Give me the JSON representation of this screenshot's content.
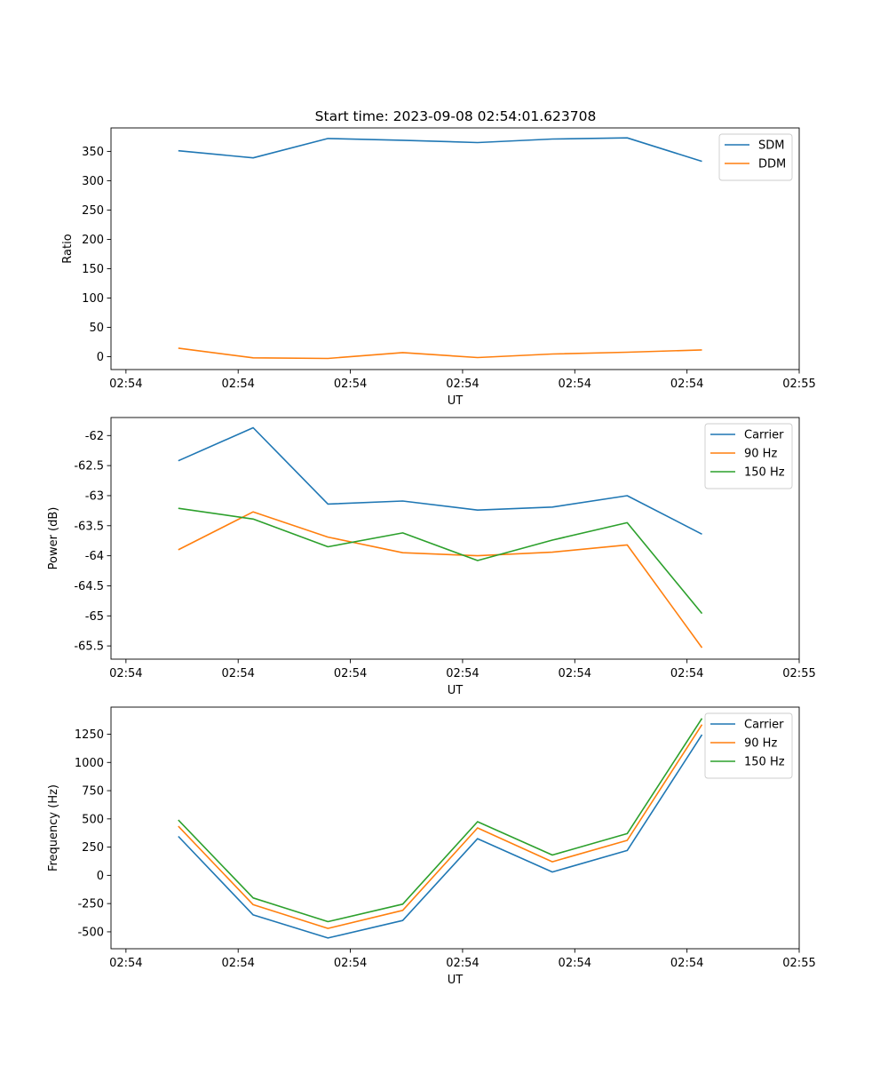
{
  "title": "Start time: 2023-09-08 02:54:01.623708",
  "colors": {
    "c0": "#1f77b4",
    "c1": "#ff7f0e",
    "c2": "#2ca02c"
  },
  "chart_data": [
    {
      "type": "line",
      "title": "Start time: 2023-09-08 02:54:01.623708",
      "xlabel": "UT",
      "ylabel": "Ratio",
      "ylim": [
        -22,
        390
      ],
      "yticks": [
        0,
        50,
        100,
        150,
        200,
        250,
        300,
        350
      ],
      "x": [
        1,
        2,
        3,
        4,
        5,
        6,
        7,
        8
      ],
      "xlim": [
        0.1,
        9.3
      ],
      "xticks": [
        0.3,
        1.8,
        3.3,
        4.8,
        6.3,
        7.8,
        9.3
      ],
      "xtick_labels": [
        "02:54",
        "02:54",
        "02:54",
        "02:54",
        "02:54",
        "02:54",
        "02:55"
      ],
      "legend_loc": "upper right",
      "series": [
        {
          "name": "SDM",
          "color": "#1f77b4",
          "values": [
            351,
            339,
            372,
            369,
            365,
            371,
            373,
            333
          ]
        },
        {
          "name": "DDM",
          "color": "#ff7f0e",
          "values": [
            14.5,
            -2,
            -3,
            7,
            -1.5,
            4.5,
            7.5,
            11.5
          ]
        }
      ]
    },
    {
      "type": "line",
      "title": "",
      "xlabel": "UT",
      "ylabel": "Power (dB)",
      "ylim": [
        -65.72,
        -61.7
      ],
      "yticks": [
        -62.0,
        -62.5,
        -63.0,
        -63.5,
        -64.0,
        -64.5,
        -65.0,
        -65.5
      ],
      "x": [
        1,
        2,
        3,
        4,
        5,
        6,
        7,
        8
      ],
      "xlim": [
        0.1,
        9.3
      ],
      "xticks": [
        0.3,
        1.8,
        3.3,
        4.8,
        6.3,
        7.8,
        9.3
      ],
      "xtick_labels": [
        "02:54",
        "02:54",
        "02:54",
        "02:54",
        "02:54",
        "02:54",
        "02:55"
      ],
      "legend_loc": "upper right",
      "series": [
        {
          "name": "Carrier",
          "color": "#1f77b4",
          "values": [
            -62.42,
            -61.87,
            -63.14,
            -63.09,
            -63.24,
            -63.19,
            -63.0,
            -63.64
          ]
        },
        {
          "name": "90 Hz",
          "color": "#ff7f0e",
          "values": [
            -63.9,
            -63.27,
            -63.69,
            -63.95,
            -64.0,
            -63.94,
            -63.82,
            -65.53
          ]
        },
        {
          "name": "150 Hz",
          "color": "#2ca02c",
          "values": [
            -63.21,
            -63.39,
            -63.85,
            -63.62,
            -64.08,
            -63.74,
            -63.45,
            -64.96
          ]
        }
      ]
    },
    {
      "type": "line",
      "title": "",
      "xlabel": "UT",
      "ylabel": "Frequency (Hz)",
      "ylim": [
        -650,
        1490
      ],
      "yticks": [
        1250,
        1000,
        750,
        500,
        250,
        0,
        -250,
        -500
      ],
      "x": [
        1,
        2,
        3,
        4,
        5,
        6,
        7,
        8
      ],
      "xlim": [
        0.1,
        9.3
      ],
      "xticks": [
        0.3,
        1.8,
        3.3,
        4.8,
        6.3,
        7.8,
        9.3
      ],
      "xtick_labels": [
        "02:54",
        "02:54",
        "02:54",
        "02:54",
        "02:54",
        "02:54",
        "02:55"
      ],
      "legend_loc": "upper right",
      "series": [
        {
          "name": "Carrier",
          "color": "#1f77b4",
          "values": [
            345,
            -350,
            -555,
            -400,
            325,
            30,
            220,
            1245
          ]
        },
        {
          "name": "90 Hz",
          "color": "#ff7f0e",
          "values": [
            435,
            -260,
            -470,
            -310,
            420,
            120,
            310,
            1335
          ]
        },
        {
          "name": "150 Hz",
          "color": "#2ca02c",
          "values": [
            490,
            -200,
            -410,
            -255,
            475,
            180,
            370,
            1390
          ]
        }
      ]
    }
  ]
}
